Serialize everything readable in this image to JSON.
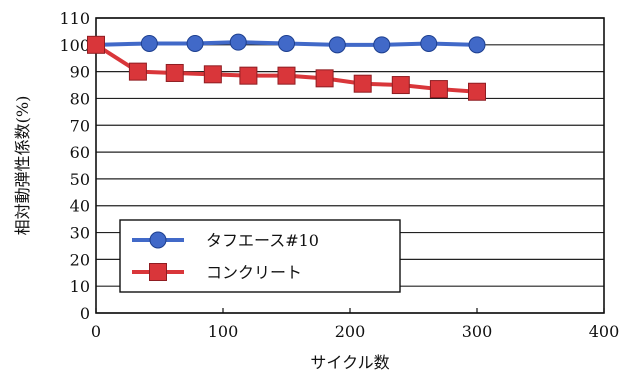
{
  "chart_data": {
    "type": "line",
    "xlabel": "サイクル数",
    "ylabel": "相対動弾性係数(%)",
    "xlim": [
      0,
      400
    ],
    "ylim": [
      0,
      110
    ],
    "x_ticks": [
      "0",
      "100",
      "200",
      "300",
      "400"
    ],
    "y_ticks": [
      "0",
      "10",
      "20",
      "30",
      "40",
      "50",
      "60",
      "70",
      "80",
      "90",
      "100",
      "110"
    ],
    "grid": "horizontal",
    "legend_position": "lower-left",
    "series": [
      {
        "name": "タフエース#10",
        "color": "#4169c8",
        "marker": "circle",
        "x": [
          0,
          42,
          78,
          112,
          150,
          190,
          225,
          262,
          300
        ],
        "y": [
          100,
          100.5,
          100.5,
          101,
          100.5,
          100,
          100,
          100.5,
          100
        ]
      },
      {
        "name": "コンクリート",
        "color": "#d9363a",
        "marker": "square",
        "x": [
          0,
          33,
          62,
          92,
          120,
          150,
          180,
          210,
          240,
          270,
          300
        ],
        "y": [
          100,
          90,
          89.5,
          89,
          88.5,
          88.5,
          87.5,
          85.5,
          85,
          83.5,
          82.5
        ]
      }
    ]
  }
}
